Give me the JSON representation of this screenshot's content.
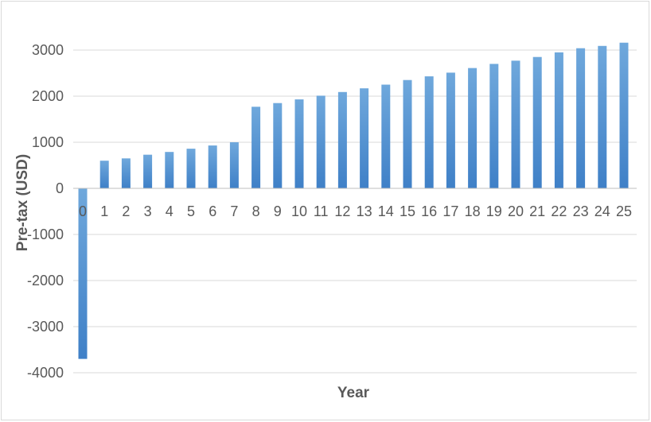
{
  "chart_data": {
    "type": "bar",
    "xlabel": "Year",
    "ylabel": "Pre-tax (USD)",
    "ylim": [
      -4000,
      3000
    ],
    "yticks": [
      3000,
      2000,
      1000,
      0,
      -1000,
      -2000,
      -3000,
      -4000
    ],
    "grid": true,
    "legend": "none",
    "bar_color": "#5b9bd5",
    "categories": [
      "0",
      "1",
      "2",
      "3",
      "4",
      "5",
      "6",
      "7",
      "8",
      "9",
      "10",
      "11",
      "12",
      "13",
      "14",
      "15",
      "16",
      "17",
      "18",
      "19",
      "20",
      "21",
      "22",
      "23",
      "24",
      "25"
    ],
    "values": [
      -3700,
      600,
      650,
      730,
      790,
      860,
      930,
      1000,
      1770,
      1850,
      1930,
      2010,
      2090,
      2170,
      2250,
      2350,
      2430,
      2510,
      2610,
      2700,
      2770,
      2850,
      2950,
      3040,
      3090,
      3160
    ]
  }
}
